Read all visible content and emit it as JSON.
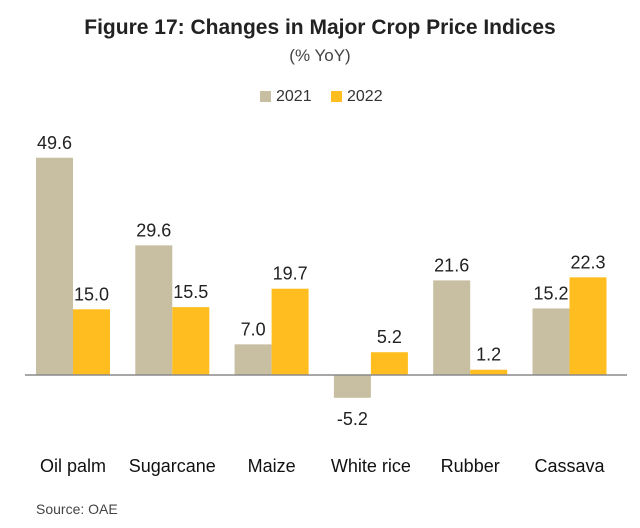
{
  "chart_data": {
    "type": "bar",
    "title": "Figure 17: Changes in Major Crop Price Indices",
    "subtitle": "(% YoY)",
    "categories": [
      "Oil palm",
      "Sugarcane",
      "Maize",
      "White rice",
      "Rubber",
      "Cassava"
    ],
    "series": [
      {
        "name": "2021",
        "color": "#c8bfa2",
        "values": [
          49.6,
          29.6,
          7.0,
          -5.2,
          21.6,
          15.2
        ],
        "labels": [
          "49.6",
          "29.6",
          "7.0",
          "-5.2",
          "21.6",
          "15.2"
        ]
      },
      {
        "name": "2022",
        "color": "#ffbd1f",
        "values": [
          15.0,
          15.5,
          19.7,
          5.2,
          1.2,
          22.3
        ],
        "labels": [
          "15.0",
          "15.5",
          "19.7",
          "5.2",
          "1.2",
          "22.3"
        ]
      }
    ],
    "legend_position": "top-center",
    "grid": false,
    "source": "Source: OAE"
  }
}
